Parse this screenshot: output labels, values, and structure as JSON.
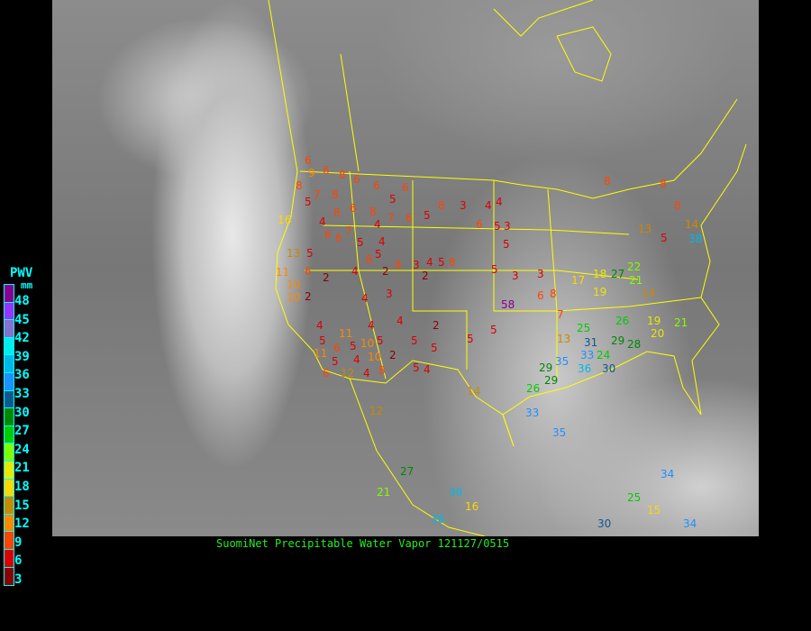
{
  "caption": "SuomiNet Precipitable Water Vapor 121127/0515",
  "legend": {
    "title": "PWV",
    "unit": "mm",
    "colors": [
      "#8a0090",
      "#9933ff",
      "#8870d0",
      "#00eeee",
      "#00b8e8",
      "#1e90ff",
      "#0a5a90",
      "#008800",
      "#00cc00",
      "#80ff00",
      "#e8e800",
      "#ffd700",
      "#c88a00",
      "#ff8800",
      "#ff4400",
      "#dd0000",
      "#8b0000"
    ],
    "labels": [
      "48",
      "45",
      "42",
      "39",
      "36",
      "33",
      "30",
      "27",
      "24",
      "21",
      "18",
      "15",
      "12",
      "9",
      "6",
      "3"
    ]
  },
  "stations": [
    "6",
    "9",
    "6",
    "8",
    "6",
    "6",
    "5",
    "6",
    "8",
    "7",
    "8",
    "5",
    "8",
    "6",
    "8",
    "4",
    "7",
    "6",
    "5",
    "4",
    "6",
    "6",
    "7",
    "5",
    "4",
    "8",
    "3",
    "4",
    "4",
    "16",
    "13",
    "5",
    "2",
    "4",
    "8",
    "2",
    "3",
    "4",
    "5",
    "8",
    "10",
    "6",
    "2",
    "4",
    "3",
    "2",
    "5",
    "8",
    "6",
    "5",
    "3",
    "5",
    "5",
    "3",
    "11",
    "10",
    "5",
    "4",
    "4",
    "2",
    "5",
    "5",
    "4",
    "5",
    "5",
    "2",
    "8",
    "10",
    "4",
    "5",
    "6",
    "6",
    "5",
    "4",
    "4",
    "10",
    "12",
    "11",
    "11",
    "14",
    "5",
    "5",
    "58",
    "3",
    "6",
    "8",
    "7",
    "13",
    "17",
    "18",
    "19",
    "27",
    "22",
    "21",
    "26",
    "19",
    "20",
    "14",
    "29",
    "35",
    "33",
    "30",
    "26",
    "33",
    "36",
    "31",
    "24",
    "25",
    "29",
    "28",
    "8",
    "8",
    "13",
    "5",
    "8",
    "14",
    "21",
    "35",
    "38",
    "16",
    "27",
    "21",
    "30",
    "12",
    "38",
    "29",
    "15",
    "25",
    "34",
    "34",
    "38"
  ]
}
